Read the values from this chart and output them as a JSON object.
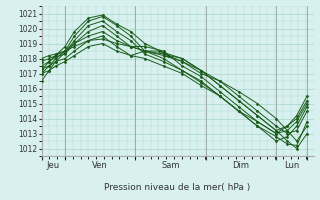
{
  "bg_color": "#d8f0f0",
  "grid_color": "#a8d8c8",
  "line_color": "#1a5c1a",
  "marker_color": "#1a5c1a",
  "xlabel": "Pression niveau de la mer( hPa )",
  "ylim": [
    1011.5,
    1021.5
  ],
  "yticks": [
    1012,
    1013,
    1014,
    1015,
    1016,
    1017,
    1018,
    1019,
    1020,
    1021
  ],
  "day_labels": [
    "Jeu",
    "Ven",
    "Sam",
    "Dim",
    "Lun"
  ],
  "day_label_centers": [
    0.125,
    0.625,
    1.375,
    2.125,
    2.67
  ],
  "day_tick_positions": [
    0.0,
    0.25,
    1.0,
    1.75,
    2.5,
    2.833
  ],
  "xlim": [
    0.0,
    2.9
  ],
  "lines": [
    {
      "x": [
        0.0,
        0.08,
        0.15,
        0.25,
        0.35,
        0.5,
        0.65,
        0.8,
        0.95,
        1.1,
        1.3,
        1.5,
        1.7,
        1.9,
        2.1,
        2.3,
        2.5,
        2.62,
        2.72,
        2.83
      ],
      "y": [
        1017.0,
        1017.5,
        1018.0,
        1018.5,
        1019.5,
        1020.5,
        1020.8,
        1020.2,
        1019.5,
        1018.5,
        1018.2,
        1017.8,
        1017.0,
        1016.5,
        1015.8,
        1015.0,
        1014.0,
        1013.2,
        1012.5,
        1013.5
      ]
    },
    {
      "x": [
        0.0,
        0.08,
        0.15,
        0.25,
        0.35,
        0.5,
        0.65,
        0.8,
        0.95,
        1.1,
        1.3,
        1.5,
        1.7,
        1.9,
        2.1,
        2.3,
        2.5,
        2.62,
        2.72,
        2.83
      ],
      "y": [
        1017.2,
        1017.8,
        1018.2,
        1018.8,
        1019.8,
        1020.7,
        1020.9,
        1020.3,
        1019.8,
        1019.0,
        1018.4,
        1018.0,
        1017.2,
        1016.2,
        1015.2,
        1014.2,
        1013.2,
        1012.5,
        1012.0,
        1013.0
      ]
    },
    {
      "x": [
        0.0,
        0.08,
        0.15,
        0.25,
        0.35,
        0.5,
        0.65,
        0.8,
        0.95,
        1.1,
        1.3,
        1.5,
        1.7,
        1.9,
        2.1,
        2.3,
        2.5,
        2.62,
        2.72,
        2.83
      ],
      "y": [
        1016.5,
        1017.2,
        1017.8,
        1018.4,
        1019.2,
        1020.2,
        1020.5,
        1019.8,
        1019.2,
        1018.3,
        1017.8,
        1017.2,
        1016.4,
        1015.5,
        1014.5,
        1013.5,
        1012.8,
        1012.3,
        1012.2,
        1013.8
      ]
    },
    {
      "x": [
        0.0,
        0.08,
        0.15,
        0.25,
        0.35,
        0.5,
        0.65,
        0.8,
        0.95,
        1.1,
        1.3,
        1.5,
        1.7,
        1.9,
        2.1,
        2.3,
        2.5,
        2.62,
        2.72,
        2.83
      ],
      "y": [
        1017.5,
        1017.8,
        1018.1,
        1018.3,
        1019.0,
        1019.8,
        1020.2,
        1019.5,
        1018.8,
        1018.8,
        1018.5,
        1017.5,
        1016.8,
        1015.8,
        1014.8,
        1013.8,
        1013.0,
        1013.2,
        1013.8,
        1015.0
      ]
    },
    {
      "x": [
        0.0,
        0.08,
        0.15,
        0.25,
        0.35,
        0.5,
        0.65,
        0.8,
        0.95,
        1.1,
        1.3,
        1.5,
        1.7,
        1.9,
        2.1,
        2.3,
        2.5,
        2.62,
        2.72,
        2.83
      ],
      "y": [
        1017.3,
        1017.5,
        1017.8,
        1018.0,
        1018.5,
        1019.2,
        1019.5,
        1018.8,
        1018.2,
        1018.5,
        1018.3,
        1017.8,
        1017.2,
        1016.2,
        1015.2,
        1014.2,
        1013.2,
        1013.5,
        1014.0,
        1015.2
      ]
    },
    {
      "x": [
        0.0,
        0.08,
        0.15,
        0.25,
        0.35,
        0.5,
        0.65,
        0.8,
        0.95,
        1.1,
        1.3,
        1.5,
        1.7,
        1.9,
        2.1,
        2.3,
        2.5,
        2.62,
        2.72,
        2.83
      ],
      "y": [
        1017.8,
        1018.0,
        1018.2,
        1018.5,
        1019.0,
        1019.5,
        1019.8,
        1019.2,
        1018.8,
        1018.5,
        1018.0,
        1017.2,
        1016.5,
        1015.5,
        1014.5,
        1013.5,
        1012.5,
        1012.8,
        1013.5,
        1014.8
      ]
    },
    {
      "x": [
        0.0,
        0.08,
        0.15,
        0.25,
        0.35,
        0.5,
        0.65,
        0.8,
        0.95,
        1.1,
        1.3,
        1.5,
        1.7,
        1.9,
        2.1,
        2.3,
        2.5,
        2.62,
        2.72,
        2.83
      ],
      "y": [
        1017.0,
        1017.2,
        1017.5,
        1017.8,
        1018.2,
        1018.8,
        1019.0,
        1018.5,
        1018.2,
        1018.0,
        1017.5,
        1017.0,
        1016.2,
        1015.5,
        1014.5,
        1013.8,
        1013.0,
        1013.5,
        1014.2,
        1015.5
      ]
    },
    {
      "x": [
        0.0,
        0.08,
        0.15,
        0.25,
        0.35,
        0.5,
        0.65,
        0.8,
        0.95,
        1.1,
        1.25,
        1.35,
        1.5,
        1.7,
        1.9,
        2.1,
        2.3,
        2.5,
        2.62,
        2.72,
        2.83
      ],
      "y": [
        1018.0,
        1018.2,
        1018.3,
        1018.5,
        1018.8,
        1019.2,
        1019.3,
        1019.0,
        1018.8,
        1018.5,
        1018.5,
        1018.2,
        1018.0,
        1017.2,
        1016.5,
        1015.5,
        1014.5,
        1013.5,
        1013.0,
        1013.2,
        1014.5
      ]
    }
  ]
}
